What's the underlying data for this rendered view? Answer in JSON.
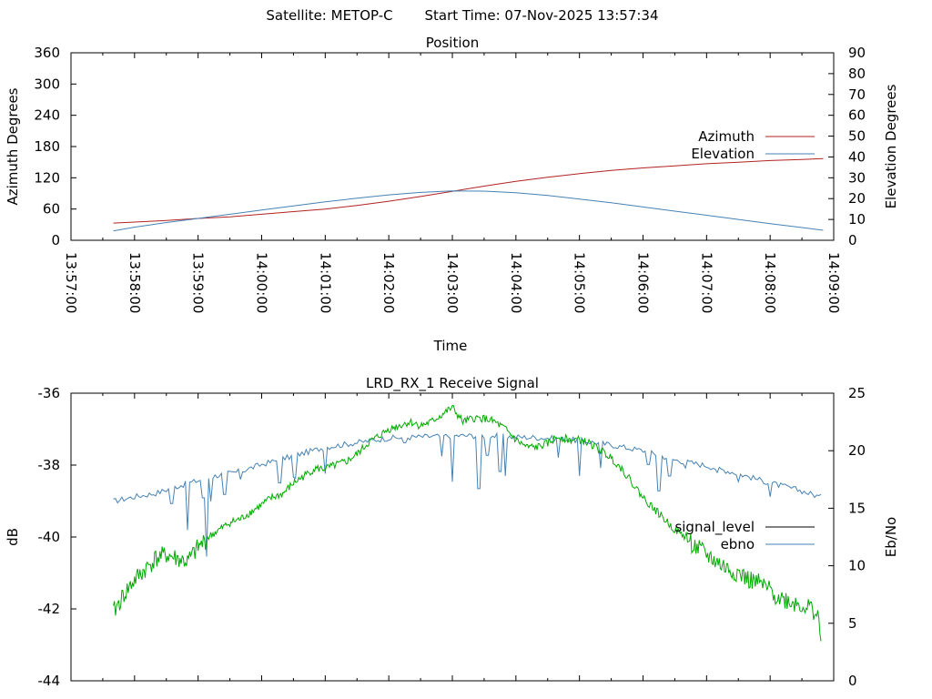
{
  "header": {
    "satellite": "Satellite: METOP-C",
    "start_time": "Start Time: 07-Nov-2025 13:57:34"
  },
  "chart_data": [
    {
      "type": "line",
      "title": "Position",
      "xlabel": "Time",
      "ylabel": "Azimuth Degrees",
      "y2label": "Elevation Degrees",
      "x_ticks": [
        "13:57:00",
        "13:58:00",
        "13:59:00",
        "14:00:00",
        "14:01:00",
        "14:02:00",
        "14:03:00",
        "14:04:00",
        "14:05:00",
        "14:06:00",
        "14:07:00",
        "14:08:00",
        "14:09:00"
      ],
      "xlim": [
        "13:57:00",
        "14:09:00"
      ],
      "ylim": [
        0,
        360
      ],
      "y_ticks": [
        0,
        60,
        120,
        180,
        240,
        300,
        360
      ],
      "y2lim": [
        0,
        90
      ],
      "y2_ticks": [
        0,
        10,
        20,
        30,
        40,
        50,
        60,
        70,
        80,
        90
      ],
      "legend_position": "right",
      "series": [
        {
          "name": "Azimuth",
          "axis": "y",
          "color": "#b22222",
          "points": [
            [
              "13:57:40",
              33
            ],
            [
              "13:58:00",
              35
            ],
            [
              "13:58:30",
              38
            ],
            [
              "13:59:00",
              42
            ],
            [
              "13:59:30",
              45
            ],
            [
              "14:00:00",
              50
            ],
            [
              "14:00:30",
              55
            ],
            [
              "14:01:00",
              60
            ],
            [
              "14:01:30",
              67
            ],
            [
              "14:02:00",
              75
            ],
            [
              "14:02:30",
              84
            ],
            [
              "14:03:00",
              94
            ],
            [
              "14:03:30",
              104
            ],
            [
              "14:04:00",
              113
            ],
            [
              "14:04:30",
              121
            ],
            [
              "14:05:00",
              128
            ],
            [
              "14:05:30",
              134
            ],
            [
              "14:06:00",
              139
            ],
            [
              "14:06:30",
              143
            ],
            [
              "14:07:00",
              147
            ],
            [
              "14:07:30",
              150
            ],
            [
              "14:08:00",
              153
            ],
            [
              "14:08:30",
              155
            ],
            [
              "14:08:50",
              157
            ]
          ]
        },
        {
          "name": "Elevation",
          "axis": "y2",
          "color": "#4682b4",
          "points": [
            [
              "13:57:40",
              4.5
            ],
            [
              "13:58:00",
              6.3
            ],
            [
              "13:58:30",
              8.5
            ],
            [
              "13:59:00",
              10.5
            ],
            [
              "13:59:30",
              12.5
            ],
            [
              "14:00:00",
              14.5
            ],
            [
              "14:00:30",
              16.5
            ],
            [
              "14:01:00",
              18.5
            ],
            [
              "14:01:30",
              20.2
            ],
            [
              "14:02:00",
              21.8
            ],
            [
              "14:02:30",
              23
            ],
            [
              "14:03:00",
              23.7
            ],
            [
              "14:03:30",
              23.6
            ],
            [
              "14:04:00",
              22.8
            ],
            [
              "14:04:30",
              21.5
            ],
            [
              "14:05:00",
              19.8
            ],
            [
              "14:05:30",
              18
            ],
            [
              "14:06:00",
              16
            ],
            [
              "14:06:30",
              14
            ],
            [
              "14:07:00",
              12
            ],
            [
              "14:07:30",
              10
            ],
            [
              "14:08:00",
              8
            ],
            [
              "14:08:30",
              6.1
            ],
            [
              "14:08:50",
              4.8
            ]
          ]
        }
      ]
    },
    {
      "type": "line",
      "title": "LRD_RX_1 Receive Signal",
      "xlabel": "",
      "ylabel": "dB",
      "y2label": "Eb/No",
      "xlim": [
        "13:57:00",
        "14:09:00"
      ],
      "ylim": [
        -44,
        -36
      ],
      "y_ticks": [
        -44,
        -42,
        -40,
        -38,
        -36
      ],
      "y2lim": [
        0,
        25
      ],
      "y2_ticks": [
        0,
        5,
        10,
        15,
        20,
        25
      ],
      "legend_position": "right",
      "series": [
        {
          "name": "signal_level",
          "axis": "y",
          "color": "#000000",
          "points": []
        },
        {
          "name": "ebno",
          "axis": "y2",
          "color": "#4682b4",
          "points": [
            [
              "13:57:40",
              15.6
            ],
            [
              "13:58:00",
              16
            ],
            [
              "13:58:20",
              16.3
            ],
            [
              "13:58:40",
              16.9
            ],
            [
              "13:59:00",
              17.4
            ],
            [
              "13:59:20",
              17.9
            ],
            [
              "13:59:40",
              18.2
            ],
            [
              "14:00:00",
              18.8
            ],
            [
              "14:00:20",
              19.3
            ],
            [
              "14:00:40",
              19.8
            ],
            [
              "14:01:00",
              20.3
            ],
            [
              "14:01:30",
              20.7
            ],
            [
              "14:02:00",
              21.1
            ],
            [
              "14:02:30",
              21.2
            ],
            [
              "14:03:00",
              21.3
            ],
            [
              "14:03:30",
              21.3
            ],
            [
              "14:04:00",
              21.2
            ],
            [
              "14:04:30",
              21.1
            ],
            [
              "14:05:00",
              20.9
            ],
            [
              "14:05:30",
              20.5
            ],
            [
              "14:06:00",
              20
            ],
            [
              "14:06:30",
              19.2
            ],
            [
              "14:07:00",
              18.7
            ],
            [
              "14:07:30",
              18
            ],
            [
              "14:08:00",
              17.2
            ],
            [
              "14:08:30",
              16.5
            ],
            [
              "14:08:50",
              15.9
            ]
          ],
          "dips": [
            [
              "13:58:35",
              15.4
            ],
            [
              "13:58:50",
              13.1
            ],
            [
              "13:59:05",
              15.9
            ],
            [
              "13:59:08",
              10.8
            ],
            [
              "13:59:12",
              15.6
            ],
            [
              "13:59:25",
              16.2
            ],
            [
              "13:59:40",
              17.5
            ],
            [
              "14:00:17",
              17.2
            ],
            [
              "14:00:30",
              17.7
            ],
            [
              "14:00:32",
              17.6
            ],
            [
              "14:01:00",
              18
            ],
            [
              "14:02:15",
              20.7
            ],
            [
              "14:02:50",
              19.5
            ],
            [
              "14:03:00",
              17.3
            ],
            [
              "14:03:25",
              16.7
            ],
            [
              "14:03:33",
              19.6
            ],
            [
              "14:03:45",
              18.2
            ],
            [
              "14:03:50",
              17.8
            ],
            [
              "14:04:40",
              19.4
            ],
            [
              "14:05:00",
              17.8
            ],
            [
              "14:05:20",
              18.5
            ],
            [
              "14:06:05",
              18.8
            ],
            [
              "14:06:15",
              16.5
            ],
            [
              "14:06:25",
              17.8
            ],
            [
              "14:06:40",
              18.5
            ],
            [
              "14:07:10",
              18.1
            ],
            [
              "14:07:30",
              17.3
            ],
            [
              "14:08:00",
              16
            ]
          ]
        },
        {
          "name": "",
          "axis": "y",
          "color": "#00aa00",
          "points": [
            [
              "13:57:40",
              -42.1
            ],
            [
              "13:57:50",
              -41.6
            ],
            [
              "13:58:00",
              -41.2
            ],
            [
              "13:58:10",
              -40.9
            ],
            [
              "13:58:20",
              -40.6
            ],
            [
              "13:58:30",
              -40.5
            ],
            [
              "13:58:40",
              -40.6
            ],
            [
              "13:58:50",
              -40.7
            ],
            [
              "13:59:00",
              -40.3
            ],
            [
              "13:59:10",
              -40
            ],
            [
              "13:59:20",
              -39.8
            ],
            [
              "13:59:30",
              -39.6
            ],
            [
              "13:59:40",
              -39.5
            ],
            [
              "13:59:50",
              -39.3
            ],
            [
              "14:00:00",
              -39.1
            ],
            [
              "14:00:10",
              -38.9
            ],
            [
              "14:00:20",
              -38.8
            ],
            [
              "14:00:30",
              -38.5
            ],
            [
              "14:00:40",
              -38.3
            ],
            [
              "14:00:50",
              -38.1
            ],
            [
              "14:01:00",
              -38.1
            ],
            [
              "14:01:10",
              -38
            ],
            [
              "14:01:20",
              -37.9
            ],
            [
              "14:01:30",
              -37.7
            ],
            [
              "14:01:40",
              -37.4
            ],
            [
              "14:01:50",
              -37.2
            ],
            [
              "14:02:00",
              -37
            ],
            [
              "14:02:10",
              -36.9
            ],
            [
              "14:02:20",
              -36.8
            ],
            [
              "14:02:30",
              -36.9
            ],
            [
              "14:02:40",
              -36.8
            ],
            [
              "14:02:50",
              -36.6
            ],
            [
              "14:03:00",
              -36.4
            ],
            [
              "14:03:10",
              -36.8
            ],
            [
              "14:03:20",
              -36.7
            ],
            [
              "14:03:30",
              -36.7
            ],
            [
              "14:03:40",
              -36.8
            ],
            [
              "14:03:50",
              -37
            ],
            [
              "14:04:00",
              -37.3
            ],
            [
              "14:04:10",
              -37.5
            ],
            [
              "14:04:20",
              -37.5
            ],
            [
              "14:04:30",
              -37.4
            ],
            [
              "14:04:40",
              -37.2
            ],
            [
              "14:04:50",
              -37.3
            ],
            [
              "14:05:00",
              -37.3
            ],
            [
              "14:05:10",
              -37.4
            ],
            [
              "14:05:20",
              -37.6
            ],
            [
              "14:05:30",
              -37.8
            ],
            [
              "14:05:40",
              -38.1
            ],
            [
              "14:05:50",
              -38.5
            ],
            [
              "14:06:00",
              -38.9
            ],
            [
              "14:06:10",
              -39.2
            ],
            [
              "14:06:20",
              -39.5
            ],
            [
              "14:06:30",
              -39.8
            ],
            [
              "14:06:40",
              -40
            ],
            [
              "14:06:50",
              -40.3
            ],
            [
              "14:07:00",
              -40.5
            ],
            [
              "14:07:10",
              -40.7
            ],
            [
              "14:07:20",
              -40.9
            ],
            [
              "14:07:30",
              -41
            ],
            [
              "14:07:40",
              -41.2
            ],
            [
              "14:07:50",
              -41.3
            ],
            [
              "14:08:00",
              -41.5
            ],
            [
              "14:08:10",
              -41.7
            ],
            [
              "14:08:20",
              -41.8
            ],
            [
              "14:08:30",
              -41.9
            ],
            [
              "14:08:40",
              -42
            ],
            [
              "14:08:45",
              -42.2
            ],
            [
              "14:08:48",
              -42.9
            ]
          ]
        }
      ]
    }
  ]
}
